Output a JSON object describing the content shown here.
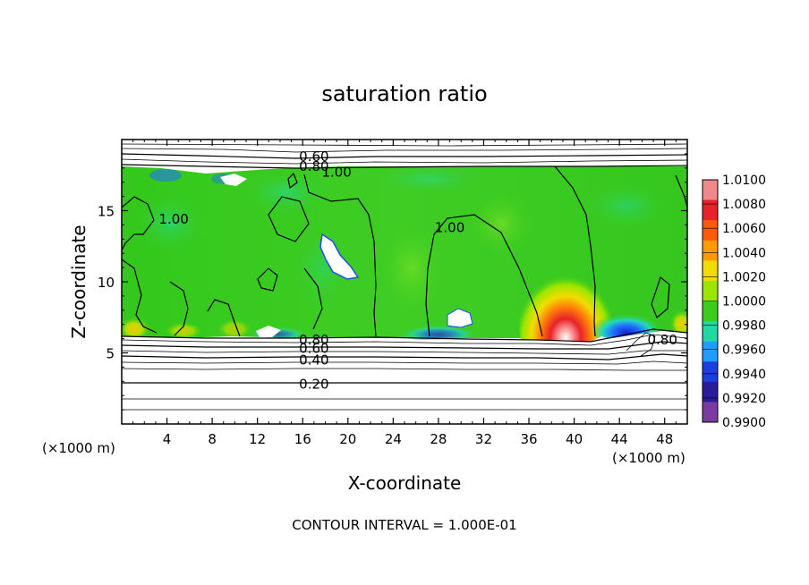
{
  "chart_data": {
    "type": "heatmap",
    "title": "saturation ratio",
    "xlabel": "X-coordinate",
    "ylabel": "Z-coordinate",
    "x_unit_left": "(×1000 m)",
    "x_unit_right": "(×1000 m)",
    "footer": "CONTOUR INTERVAL = 1.000E-01",
    "xlim": [
      0,
      50
    ],
    "ylim": [
      0,
      20
    ],
    "x_ticks": [
      4,
      8,
      12,
      16,
      20,
      24,
      28,
      32,
      36,
      40,
      44,
      48
    ],
    "y_ticks": [
      5,
      10,
      15
    ],
    "contour_interval": 0.1,
    "colorbar": {
      "range": [
        0.99,
        1.01
      ],
      "ticks": [
        "1.0100",
        "1.0080",
        "1.0060",
        "1.0040",
        "1.0020",
        "1.0000",
        "0.9980",
        "0.9960",
        "0.9940",
        "0.9920",
        "0.9900"
      ],
      "colors": [
        "#f08a8a",
        "#e8222a",
        "#ff5a0a",
        "#ff9a00",
        "#f2dc00",
        "#9be600",
        "#3ccc1c",
        "#22d8a2",
        "#1f9cff",
        "#1b3ee0",
        "#2a1a9c",
        "#7a3aa0"
      ]
    },
    "contour_labels": [
      {
        "text": "0.60",
        "x": 17.0,
        "z": 18.8
      },
      {
        "text": "0.80",
        "x": 17.0,
        "z": 18.1
      },
      {
        "text": "1.00",
        "x": 19.0,
        "z": 17.7
      },
      {
        "text": "1.00",
        "x": 4.6,
        "z": 14.4
      },
      {
        "text": "1.00",
        "x": 29.0,
        "z": 13.8
      },
      {
        "text": "0.80",
        "x": 17.0,
        "z": 5.9
      },
      {
        "text": "0.60",
        "x": 17.0,
        "z": 5.3
      },
      {
        "text": "0.40",
        "x": 17.0,
        "z": 4.5
      },
      {
        "text": "0.20",
        "x": 17.0,
        "z": 2.8
      },
      {
        "text": "0.80",
        "x": 47.8,
        "z": 5.9
      }
    ],
    "features": [
      {
        "kind": "supersaturated-maximum",
        "x": 38.9,
        "z": 6.8,
        "peak": 1.008
      },
      {
        "kind": "subsaturated-minimum",
        "x": 44.8,
        "z": 6.4,
        "value": 0.993
      },
      {
        "kind": "subsaturated-pocket",
        "x": 18.5,
        "z": 11.2,
        "value": 0.995
      }
    ]
  }
}
